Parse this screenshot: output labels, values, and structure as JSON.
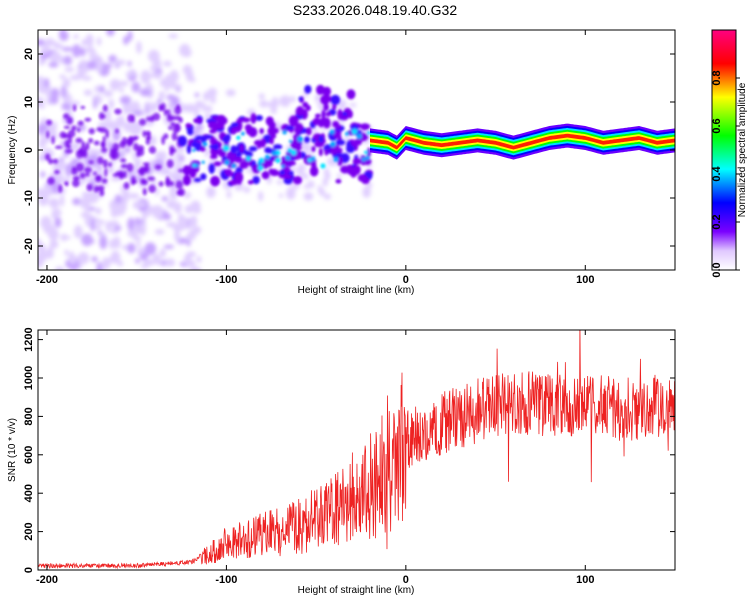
{
  "title": "S233.2026.048.19.40.G32",
  "chart_data": [
    {
      "type": "heatmap",
      "name": "spectrogram",
      "xlabel": "Height of straight line (km)",
      "ylabel": "Frequency (Hz)",
      "xlim": [
        -205,
        150
      ],
      "ylim": [
        -25,
        25
      ],
      "x_ticks": [
        -200,
        -100,
        0,
        100
      ],
      "x_tick_labels": [
        "-200",
        "-100",
        "0",
        "100"
      ],
      "y_ticks": [
        20,
        10,
        0,
        -10,
        -20
      ],
      "y_tick_labels": [
        "20",
        "10",
        "0",
        "-10",
        "-20"
      ],
      "colorbar": {
        "label": "Normalized spectral amplitude",
        "range": [
          0,
          1
        ],
        "ticks": [
          0.0,
          0.2,
          0.4,
          0.6,
          0.8
        ],
        "tick_labels": [
          "0.0",
          "0.2",
          "0.4",
          "0.6",
          "0.8"
        ],
        "colors": [
          "#ffffff",
          "#7a00ff",
          "#0000ff",
          "#00ffff",
          "#00ff00",
          "#ffff00",
          "#ff0000",
          "#ff0080"
        ]
      },
      "ridge": {
        "x": [
          -20,
          -10,
          -5,
          0,
          10,
          20,
          30,
          40,
          50,
          60,
          70,
          80,
          90,
          100,
          110,
          120,
          130,
          140,
          150
        ],
        "freq": [
          2.0,
          1.5,
          0.5,
          2.5,
          1.5,
          1.0,
          1.5,
          2.0,
          1.5,
          0.5,
          1.5,
          2.5,
          3.0,
          2.5,
          1.5,
          2.0,
          2.5,
          1.5,
          2.0
        ]
      }
    },
    {
      "type": "line",
      "name": "snr",
      "xlabel": "Height of straight line (km)",
      "ylabel": "SNR (10 * v/v)",
      "xlim": [
        -205,
        150
      ],
      "ylim": [
        0,
        1250
      ],
      "x_ticks": [
        -200,
        -100,
        0,
        100
      ],
      "x_tick_labels": [
        "-200",
        "-100",
        "0",
        "100"
      ],
      "y_ticks": [
        0,
        200,
        400,
        600,
        800,
        1000,
        1200
      ],
      "y_tick_labels": [
        "0",
        "200",
        "400",
        "600",
        "800",
        "1000",
        "1200"
      ],
      "color": "#ee2222",
      "trend": {
        "x": [
          -205,
          -150,
          -120,
          -110,
          -100,
          -80,
          -60,
          -40,
          -20,
          -10,
          0,
          10,
          20,
          30,
          40,
          50,
          60,
          70,
          80,
          90,
          100,
          110,
          120,
          130,
          140,
          150
        ],
        "y": [
          22,
          22,
          40,
          80,
          140,
          180,
          230,
          300,
          420,
          540,
          660,
          720,
          760,
          800,
          830,
          850,
          860,
          870,
          860,
          850,
          850,
          850,
          840,
          840,
          850,
          850
        ]
      }
    }
  ]
}
